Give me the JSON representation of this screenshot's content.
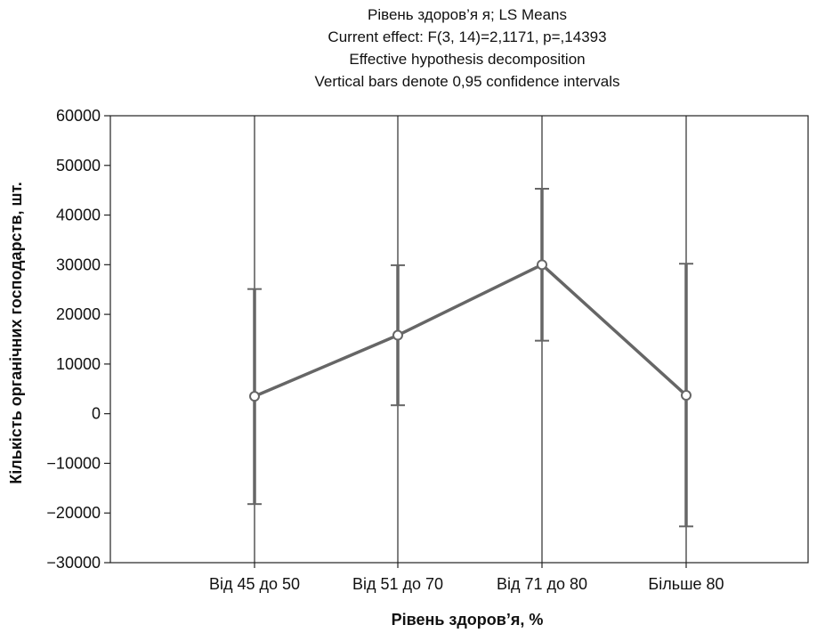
{
  "chart_data": {
    "type": "line",
    "title_lines": [
      "Рівень здоров’я я; LS Means",
      "Current effect: F(3, 14)=2,1171, p=,14393",
      "Effective hypothesis decomposition",
      "Vertical bars denote 0,95 confidence intervals"
    ],
    "xlabel": "Рівень здоров’я, %",
    "ylabel": "Кількість органічних господарств, шт.",
    "categories": [
      "Від 45 до 50",
      "Від 51 до 70",
      "Від 71 до 80",
      "Більше 80"
    ],
    "means": [
      3500,
      15800,
      30000,
      3700
    ],
    "ci_lower": [
      -18200,
      1700,
      14700,
      -22700
    ],
    "ci_upper": [
      25100,
      29900,
      45300,
      30200
    ],
    "ylim": [
      -30000,
      60000
    ],
    "yticks": [
      60000,
      50000,
      40000,
      30000,
      20000,
      10000,
      0,
      -10000,
      -20000,
      -30000
    ],
    "ytick_labels": [
      "60000",
      "50000",
      "40000",
      "30000",
      "20000",
      "10000",
      "0",
      "−10000",
      "−20000",
      "−30000"
    ],
    "grid": "vertical",
    "line_color": "#666666",
    "axis_color": "#222222"
  }
}
